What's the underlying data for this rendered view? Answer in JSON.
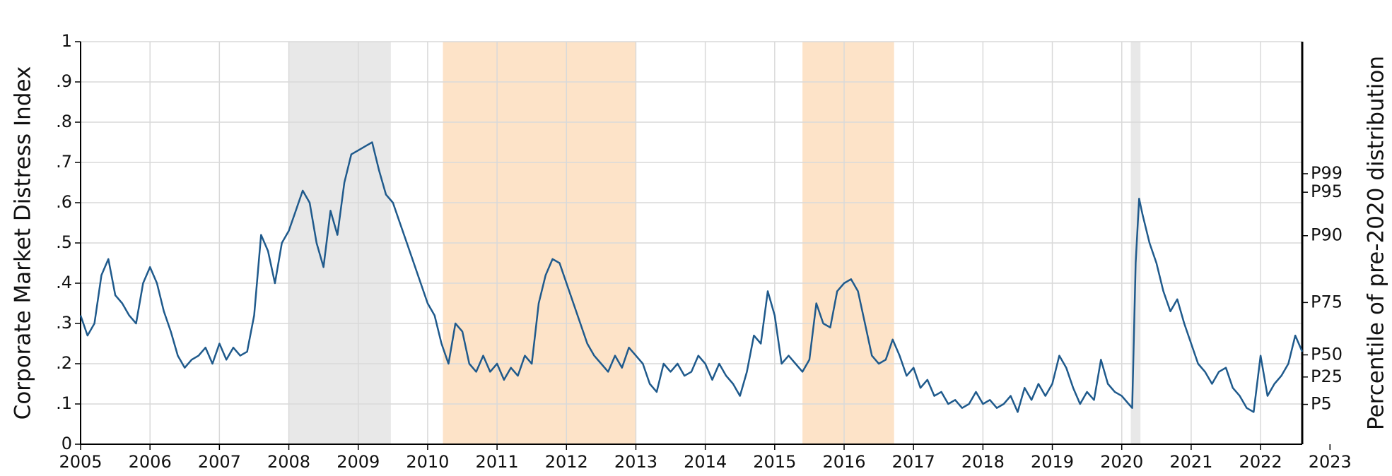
{
  "chart_data": {
    "type": "line",
    "ylabel": "Corporate Market Distress Index",
    "y2label": "Percentile of pre-2020 distribution",
    "xlim": [
      2005,
      2022.6
    ],
    "xticks": [
      2005,
      2006,
      2007,
      2008,
      2009,
      2010,
      2011,
      2012,
      2013,
      2014,
      2015,
      2016,
      2017,
      2018,
      2019,
      2020,
      2021,
      2022,
      2023
    ],
    "ylim": [
      0,
      1
    ],
    "yticks": [
      0,
      {
        "value": 0.1,
        "label": ".1"
      },
      {
        "value": 0.2,
        "label": ".2"
      },
      {
        "value": 0.3,
        "label": ".3"
      },
      {
        "value": 0.4,
        "label": ".4"
      },
      {
        "value": 0.5,
        "label": ".5"
      },
      {
        "value": 0.6,
        "label": ".6"
      },
      {
        "value": 0.7,
        "label": ".7"
      },
      {
        "value": 0.8,
        "label": ".8"
      },
      {
        "value": 0.9,
        "label": ".9"
      },
      1
    ],
    "y2lim": [
      0,
      1
    ],
    "y2ticks": [
      {
        "value": 0.099,
        "label": "P5"
      },
      {
        "value": 0.167,
        "label": "P25"
      },
      {
        "value": 0.222,
        "label": "P50"
      },
      {
        "value": 0.352,
        "label": "P75"
      },
      {
        "value": 0.518,
        "label": "P90"
      },
      {
        "value": 0.626,
        "label": "P95"
      },
      {
        "value": 0.672,
        "label": "P99"
      }
    ],
    "grid": true,
    "shaded_regions": [
      {
        "start": 2008.0,
        "end": 2009.47,
        "color": "#e8e8e8"
      },
      {
        "start": 2010.22,
        "end": 2013.0,
        "color": "#fde3c8"
      },
      {
        "start": 2015.4,
        "end": 2016.72,
        "color": "#fde3c8"
      },
      {
        "start": 2020.13,
        "end": 2020.27,
        "color": "#e8e8e8"
      }
    ],
    "x": [
      2005.0,
      2005.1,
      2005.2,
      2005.3,
      2005.4,
      2005.5,
      2005.6,
      2005.7,
      2005.8,
      2005.9,
      2006.0,
      2006.1,
      2006.2,
      2006.3,
      2006.4,
      2006.5,
      2006.6,
      2006.7,
      2006.8,
      2006.9,
      2007.0,
      2007.1,
      2007.2,
      2007.3,
      2007.4,
      2007.5,
      2007.6,
      2007.7,
      2007.8,
      2007.9,
      2008.0,
      2008.1,
      2008.2,
      2008.3,
      2008.4,
      2008.5,
      2008.6,
      2008.7,
      2008.8,
      2008.9,
      2009.0,
      2009.1,
      2009.2,
      2009.3,
      2009.4,
      2009.5,
      2009.6,
      2009.7,
      2009.8,
      2009.9,
      2010.0,
      2010.1,
      2010.2,
      2010.3,
      2010.4,
      2010.5,
      2010.6,
      2010.7,
      2010.8,
      2010.9,
      2011.0,
      2011.1,
      2011.2,
      2011.3,
      2011.4,
      2011.5,
      2011.6,
      2011.7,
      2011.8,
      2011.9,
      2012.0,
      2012.1,
      2012.2,
      2012.3,
      2012.4,
      2012.5,
      2012.6,
      2012.7,
      2012.8,
      2012.9,
      2013.0,
      2013.1,
      2013.2,
      2013.3,
      2013.4,
      2013.5,
      2013.6,
      2013.7,
      2013.8,
      2013.9,
      2014.0,
      2014.1,
      2014.2,
      2014.3,
      2014.4,
      2014.5,
      2014.6,
      2014.7,
      2014.8,
      2014.9,
      2015.0,
      2015.1,
      2015.2,
      2015.3,
      2015.4,
      2015.5,
      2015.6,
      2015.7,
      2015.8,
      2015.9,
      2016.0,
      2016.1,
      2016.2,
      2016.3,
      2016.4,
      2016.5,
      2016.6,
      2016.7,
      2016.8,
      2016.9,
      2017.0,
      2017.1,
      2017.2,
      2017.3,
      2017.4,
      2017.5,
      2017.6,
      2017.7,
      2017.8,
      2017.9,
      2018.0,
      2018.1,
      2018.2,
      2018.3,
      2018.4,
      2018.5,
      2018.6,
      2018.7,
      2018.8,
      2018.9,
      2019.0,
      2019.1,
      2019.2,
      2019.3,
      2019.4,
      2019.5,
      2019.6,
      2019.7,
      2019.8,
      2019.9,
      2020.0,
      2020.1,
      2020.15,
      2020.2,
      2020.25,
      2020.3,
      2020.4,
      2020.5,
      2020.6,
      2020.7,
      2020.8,
      2020.9,
      2021.0,
      2021.1,
      2021.2,
      2021.3,
      2021.4,
      2021.5,
      2021.6,
      2021.7,
      2021.8,
      2021.9,
      2022.0,
      2022.1,
      2022.2,
      2022.3,
      2022.4,
      2022.5,
      2022.6
    ],
    "series": [
      {
        "color": "#1f5a8c",
        "values": [
          0.32,
          0.27,
          0.3,
          0.42,
          0.46,
          0.37,
          0.35,
          0.32,
          0.3,
          0.4,
          0.44,
          0.4,
          0.33,
          0.28,
          0.22,
          0.19,
          0.21,
          0.22,
          0.24,
          0.2,
          0.25,
          0.21,
          0.24,
          0.22,
          0.23,
          0.32,
          0.52,
          0.48,
          0.4,
          0.5,
          0.53,
          0.58,
          0.63,
          0.6,
          0.5,
          0.44,
          0.58,
          0.52,
          0.65,
          0.72,
          0.73,
          0.74,
          0.75,
          0.68,
          0.62,
          0.6,
          0.55,
          0.5,
          0.45,
          0.4,
          0.35,
          0.32,
          0.25,
          0.2,
          0.3,
          0.28,
          0.2,
          0.18,
          0.22,
          0.18,
          0.2,
          0.16,
          0.19,
          0.17,
          0.22,
          0.2,
          0.35,
          0.42,
          0.46,
          0.45,
          0.4,
          0.35,
          0.3,
          0.25,
          0.22,
          0.2,
          0.18,
          0.22,
          0.19,
          0.24,
          0.22,
          0.2,
          0.15,
          0.13,
          0.2,
          0.18,
          0.2,
          0.17,
          0.18,
          0.22,
          0.2,
          0.16,
          0.2,
          0.17,
          0.15,
          0.12,
          0.18,
          0.27,
          0.25,
          0.38,
          0.32,
          0.2,
          0.22,
          0.2,
          0.18,
          0.21,
          0.35,
          0.3,
          0.29,
          0.38,
          0.4,
          0.41,
          0.38,
          0.3,
          0.22,
          0.2,
          0.21,
          0.26,
          0.22,
          0.17,
          0.19,
          0.14,
          0.16,
          0.12,
          0.13,
          0.1,
          0.11,
          0.09,
          0.1,
          0.13,
          0.1,
          0.11,
          0.09,
          0.1,
          0.12,
          0.08,
          0.14,
          0.11,
          0.15,
          0.12,
          0.15,
          0.22,
          0.19,
          0.14,
          0.1,
          0.13,
          0.11,
          0.21,
          0.15,
          0.13,
          0.12,
          0.1,
          0.09,
          0.45,
          0.61,
          0.57,
          0.5,
          0.45,
          0.38,
          0.33,
          0.36,
          0.3,
          0.25,
          0.2,
          0.18,
          0.15,
          0.18,
          0.19,
          0.14,
          0.12,
          0.09,
          0.08,
          0.22,
          0.12,
          0.15,
          0.17,
          0.2,
          0.27,
          0.23
        ]
      }
    ]
  }
}
